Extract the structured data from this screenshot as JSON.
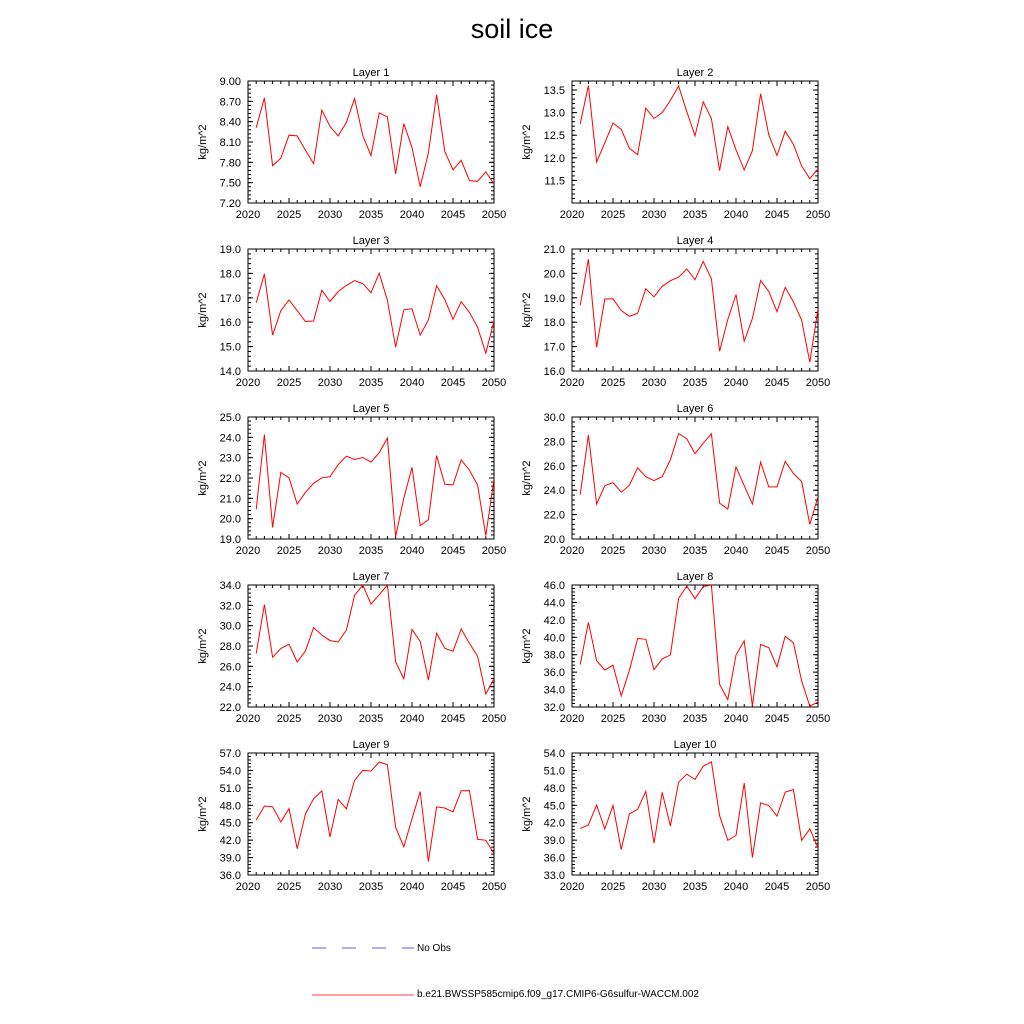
{
  "title": "soil ice",
  "legend": {
    "no_obs_label": "No Obs",
    "model_label": "b.e21.BWSSP585cmip6.f09_g17.CMIP6-G6sulfur-WACCM.002",
    "no_obs_color": "#2b2bd6",
    "model_color": "#ff0000"
  },
  "chart_data": [
    {
      "type": "line",
      "title": "Layer 1",
      "ylabel": "kg/m^2",
      "xlim": [
        2020,
        2050
      ],
      "ylim": [
        7.2,
        9.0
      ],
      "xticks": [
        2020,
        2025,
        2030,
        2035,
        2040,
        2045,
        2050
      ],
      "yticks": [
        "7.20",
        "7.50",
        "7.80",
        "8.10",
        "8.40",
        "8.70",
        "9.00"
      ],
      "x": [
        2021,
        2022,
        2023,
        2024,
        2025,
        2026,
        2027,
        2028,
        2029,
        2030,
        2031,
        2032,
        2033,
        2034,
        2035,
        2036,
        2037,
        2038,
        2039,
        2040,
        2041,
        2042,
        2043,
        2044,
        2045,
        2046,
        2047,
        2048,
        2049,
        2050
      ],
      "values": [
        8.31,
        8.75,
        7.75,
        7.86,
        8.2,
        8.19,
        7.98,
        7.78,
        8.57,
        8.33,
        8.19,
        8.39,
        8.74,
        8.19,
        7.9,
        8.53,
        8.47,
        7.63,
        8.37,
        8.02,
        7.44,
        7.94,
        8.8,
        7.96,
        7.69,
        7.83,
        7.53,
        7.52,
        7.66,
        7.48
      ]
    },
    {
      "type": "line",
      "title": "Layer 2",
      "ylabel": "kg/m^2",
      "xlim": [
        2020,
        2050
      ],
      "ylim": [
        11.0,
        13.7
      ],
      "xticks": [
        2020,
        2025,
        2030,
        2035,
        2040,
        2045,
        2050
      ],
      "yticks": [
        "11.5",
        "12.0",
        "12.5",
        "13.0",
        "13.5"
      ],
      "x": [
        2021,
        2022,
        2023,
        2024,
        2025,
        2026,
        2027,
        2028,
        2029,
        2030,
        2031,
        2032,
        2033,
        2034,
        2035,
        2036,
        2037,
        2038,
        2039,
        2040,
        2041,
        2042,
        2043,
        2044,
        2045,
        2046,
        2047,
        2048,
        2049,
        2050
      ],
      "values": [
        12.75,
        13.6,
        11.91,
        12.33,
        12.77,
        12.63,
        12.21,
        12.07,
        13.1,
        12.87,
        13.0,
        13.27,
        13.59,
        13.02,
        12.49,
        13.24,
        12.87,
        11.72,
        12.69,
        12.18,
        11.73,
        12.16,
        13.42,
        12.51,
        12.05,
        12.59,
        12.3,
        11.82,
        11.54,
        11.76
      ]
    },
    {
      "type": "line",
      "title": "Layer 3",
      "ylabel": "kg/m^2",
      "xlim": [
        2020,
        2050
      ],
      "ylim": [
        14.0,
        19.0
      ],
      "xticks": [
        2020,
        2025,
        2030,
        2035,
        2040,
        2045,
        2050
      ],
      "yticks": [
        "14.0",
        "15.0",
        "16.0",
        "17.0",
        "18.0",
        "19.0"
      ],
      "x": [
        2021,
        2022,
        2023,
        2024,
        2025,
        2026,
        2027,
        2028,
        2029,
        2030,
        2031,
        2032,
        2033,
        2034,
        2035,
        2036,
        2037,
        2038,
        2039,
        2040,
        2041,
        2042,
        2043,
        2044,
        2045,
        2046,
        2047,
        2048,
        2049,
        2050
      ],
      "values": [
        16.8,
        17.98,
        15.47,
        16.47,
        16.91,
        16.47,
        16.03,
        16.05,
        17.31,
        16.85,
        17.26,
        17.51,
        17.7,
        17.58,
        17.21,
        18.01,
        16.9,
        14.98,
        16.51,
        16.55,
        15.47,
        16.09,
        17.49,
        16.93,
        16.12,
        16.84,
        16.4,
        15.79,
        14.73,
        16.05
      ]
    },
    {
      "type": "line",
      "title": "Layer 4",
      "ylabel": "kg/m^2",
      "xlim": [
        2020,
        2050
      ],
      "ylim": [
        16.0,
        21.0
      ],
      "xticks": [
        2020,
        2025,
        2030,
        2035,
        2040,
        2045,
        2050
      ],
      "yticks": [
        "16.0",
        "17.0",
        "18.0",
        "19.0",
        "20.0",
        "21.0"
      ],
      "x": [
        2021,
        2022,
        2023,
        2024,
        2025,
        2026,
        2027,
        2028,
        2029,
        2030,
        2031,
        2032,
        2033,
        2034,
        2035,
        2036,
        2037,
        2038,
        2039,
        2040,
        2041,
        2042,
        2043,
        2044,
        2045,
        2046,
        2047,
        2048,
        2049,
        2050
      ],
      "values": [
        18.69,
        20.58,
        16.97,
        18.95,
        18.96,
        18.48,
        18.24,
        18.36,
        19.37,
        19.04,
        19.47,
        19.7,
        19.85,
        20.18,
        19.74,
        20.49,
        19.78,
        16.81,
        18.11,
        19.13,
        17.22,
        18.15,
        19.71,
        19.26,
        18.43,
        19.43,
        18.83,
        18.09,
        16.36,
        18.55
      ]
    },
    {
      "type": "line",
      "title": "Layer 5",
      "ylabel": "kg/m^2",
      "xlim": [
        2020,
        2050
      ],
      "ylim": [
        19.0,
        25.0
      ],
      "xticks": [
        2020,
        2025,
        2030,
        2035,
        2040,
        2045,
        2050
      ],
      "yticks": [
        "19.0",
        "20.0",
        "21.0",
        "22.0",
        "23.0",
        "24.0",
        "25.0"
      ],
      "x": [
        2021,
        2022,
        2023,
        2024,
        2025,
        2026,
        2027,
        2028,
        2029,
        2030,
        2031,
        2032,
        2033,
        2034,
        2035,
        2036,
        2037,
        2038,
        2039,
        2040,
        2041,
        2042,
        2043,
        2044,
        2045,
        2046,
        2047,
        2048,
        2049,
        2050
      ],
      "values": [
        20.45,
        24.14,
        19.57,
        22.27,
        22.01,
        20.72,
        21.29,
        21.74,
        22.01,
        22.06,
        22.66,
        23.07,
        22.91,
        23.01,
        22.78,
        23.24,
        23.96,
        19.12,
        21.01,
        22.52,
        19.66,
        19.95,
        23.1,
        21.69,
        21.66,
        22.89,
        22.39,
        21.65,
        19.16,
        21.96
      ]
    },
    {
      "type": "line",
      "title": "Layer 6",
      "ylabel": "kg/m^2",
      "xlim": [
        2020,
        2050
      ],
      "ylim": [
        20.0,
        30.0
      ],
      "xticks": [
        2020,
        2025,
        2030,
        2035,
        2040,
        2045,
        2050
      ],
      "yticks": [
        "20.0",
        "22.0",
        "24.0",
        "26.0",
        "28.0",
        "30.0"
      ],
      "x": [
        2021,
        2022,
        2023,
        2024,
        2025,
        2026,
        2027,
        2028,
        2029,
        2030,
        2031,
        2032,
        2033,
        2034,
        2035,
        2036,
        2037,
        2038,
        2039,
        2040,
        2041,
        2042,
        2043,
        2044,
        2045,
        2046,
        2047,
        2048,
        2049,
        2050
      ],
      "values": [
        23.63,
        28.53,
        22.86,
        24.37,
        24.62,
        23.84,
        24.41,
        25.84,
        25.11,
        24.79,
        25.11,
        26.5,
        28.64,
        28.22,
        26.99,
        27.85,
        28.62,
        22.94,
        22.45,
        25.91,
        24.37,
        22.87,
        26.3,
        24.27,
        24.27,
        26.36,
        25.37,
        24.72,
        21.2,
        23.46
      ]
    },
    {
      "type": "line",
      "title": "Layer 7",
      "ylabel": "kg/m^2",
      "xlim": [
        2020,
        2050
      ],
      "ylim": [
        22.0,
        34.0
      ],
      "xticks": [
        2020,
        2025,
        2030,
        2035,
        2040,
        2045,
        2050
      ],
      "yticks": [
        "22.0",
        "24.0",
        "26.0",
        "28.0",
        "30.0",
        "32.0",
        "34.0"
      ],
      "x": [
        2021,
        2022,
        2023,
        2024,
        2025,
        2026,
        2027,
        2028,
        2029,
        2030,
        2031,
        2032,
        2033,
        2034,
        2035,
        2036,
        2037,
        2038,
        2039,
        2040,
        2041,
        2042,
        2043,
        2044,
        2045,
        2046,
        2047,
        2048,
        2049,
        2050
      ],
      "values": [
        27.25,
        32.07,
        26.89,
        27.75,
        28.18,
        26.43,
        27.5,
        29.81,
        29.08,
        28.53,
        28.39,
        29.56,
        33.0,
        34.0,
        32.12,
        33.05,
        34.0,
        26.45,
        24.78,
        29.61,
        28.46,
        24.66,
        29.26,
        27.76,
        27.49,
        29.67,
        28.27,
        26.99,
        23.29,
        24.76
      ]
    },
    {
      "type": "line",
      "title": "Layer 8",
      "ylabel": "kg/m^2",
      "xlim": [
        2020,
        2050
      ],
      "ylim": [
        32.0,
        46.0
      ],
      "xticks": [
        2020,
        2025,
        2030,
        2035,
        2040,
        2045,
        2050
      ],
      "yticks": [
        "32.0",
        "34.0",
        "36.0",
        "38.0",
        "40.0",
        "42.0",
        "44.0",
        "46.0"
      ],
      "x": [
        2021,
        2022,
        2023,
        2024,
        2025,
        2026,
        2027,
        2028,
        2029,
        2030,
        2031,
        2032,
        2033,
        2034,
        2035,
        2036,
        2037,
        2038,
        2039,
        2040,
        2041,
        2042,
        2043,
        2044,
        2045,
        2046,
        2047,
        2048,
        2049,
        2050
      ],
      "values": [
        36.88,
        41.71,
        37.33,
        36.24,
        36.8,
        33.26,
        36.21,
        39.86,
        39.77,
        36.28,
        37.52,
        37.98,
        44.46,
        45.88,
        44.43,
        45.82,
        46.0,
        34.61,
        32.85,
        37.97,
        39.6,
        32.1,
        39.17,
        38.8,
        36.6,
        40.12,
        39.38,
        35.01,
        32.1,
        32.56
      ]
    },
    {
      "type": "line",
      "title": "Layer 9",
      "ylabel": "kg/m^2",
      "xlim": [
        2020,
        2050
      ],
      "ylim": [
        36.0,
        57.0
      ],
      "xticks": [
        2020,
        2025,
        2030,
        2035,
        2040,
        2045,
        2050
      ],
      "yticks": [
        "36.0",
        "39.0",
        "42.0",
        "45.0",
        "48.0",
        "51.0",
        "54.0",
        "57.0"
      ],
      "x": [
        2021,
        2022,
        2023,
        2024,
        2025,
        2026,
        2027,
        2028,
        2029,
        2030,
        2031,
        2032,
        2033,
        2034,
        2035,
        2036,
        2037,
        2038,
        2039,
        2040,
        2041,
        2042,
        2043,
        2044,
        2045,
        2046,
        2047,
        2048,
        2049,
        2050
      ],
      "values": [
        45.45,
        47.87,
        47.74,
        45.12,
        47.43,
        40.52,
        46.49,
        49.11,
        50.48,
        42.55,
        49.01,
        47.39,
        52.3,
        54.03,
        53.89,
        55.45,
        55.0,
        44.22,
        40.83,
        45.67,
        50.37,
        38.33,
        47.73,
        47.54,
        46.86,
        50.51,
        50.52,
        42.15,
        41.97,
        39.69
      ]
    },
    {
      "type": "line",
      "title": "Layer 10",
      "ylabel": "kg/m^2",
      "xlim": [
        2020,
        2050
      ],
      "ylim": [
        33.0,
        54.0
      ],
      "xticks": [
        2020,
        2025,
        2030,
        2035,
        2040,
        2045,
        2050
      ],
      "yticks": [
        "33.0",
        "36.0",
        "39.0",
        "42.0",
        "45.0",
        "48.0",
        "51.0",
        "54.0"
      ],
      "x": [
        2021,
        2022,
        2023,
        2024,
        2025,
        2026,
        2027,
        2028,
        2029,
        2030,
        2031,
        2032,
        2033,
        2034,
        2035,
        2036,
        2037,
        2038,
        2039,
        2040,
        2041,
        2042,
        2043,
        2044,
        2045,
        2046,
        2047,
        2048,
        2049,
        2050
      ],
      "values": [
        40.99,
        41.62,
        45.04,
        40.92,
        45.0,
        37.35,
        43.53,
        44.3,
        47.4,
        38.48,
        47.21,
        41.44,
        48.98,
        50.35,
        49.46,
        51.71,
        52.48,
        43.2,
        38.98,
        39.8,
        48.82,
        36.02,
        45.41,
        44.96,
        43.13,
        47.26,
        47.71,
        38.96,
        40.94,
        37.68
      ]
    }
  ]
}
